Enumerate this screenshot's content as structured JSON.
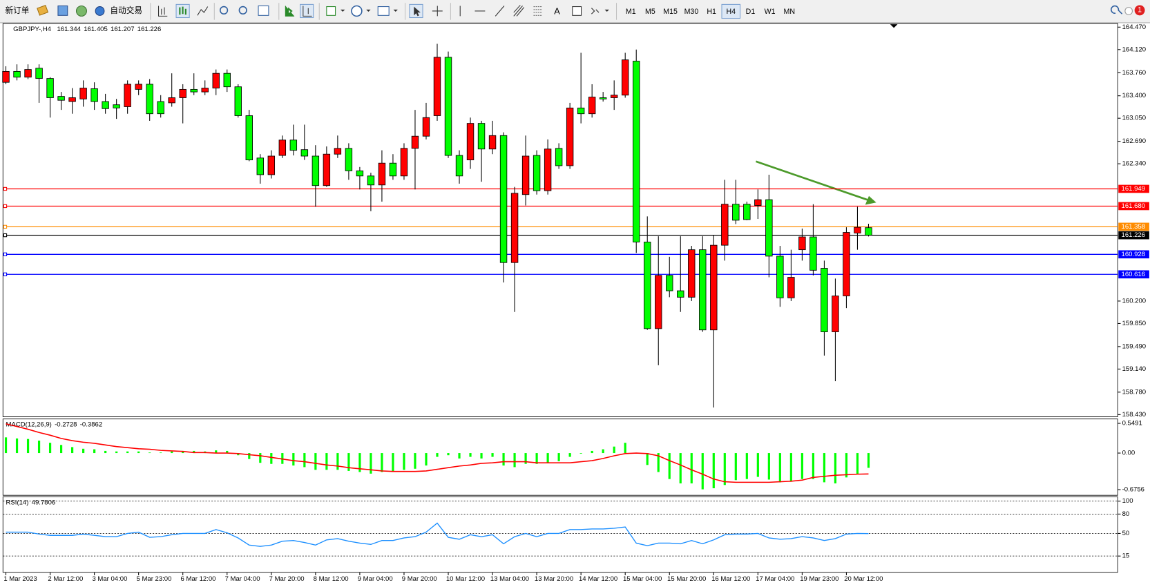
{
  "toolbar": {
    "new_order": "新订单",
    "auto_trading": "自动交易",
    "text_tool": "A",
    "timeframes": [
      "M1",
      "M5",
      "M15",
      "M30",
      "H1",
      "H4",
      "D1",
      "W1",
      "MN"
    ],
    "active_timeframe": "H4",
    "notifications": 1
  },
  "chart_data": [
    {
      "type": "candlestick",
      "title": "GBPJPY-,H4",
      "up_color": "#ff0000",
      "down_color": "#00ff00",
      "categories": [
        "1 Mar 2023",
        null,
        null,
        null,
        "2 Mar 12:00",
        null,
        null,
        null,
        "3 Mar 04:00",
        null,
        null,
        null,
        "5 Mar 23:00",
        null,
        null,
        null,
        "6 Mar 12:00",
        null,
        null,
        null,
        "7 Mar 04:00",
        null,
        null,
        null,
        "7 Mar 20:00",
        null,
        null,
        null,
        "8 Mar 12:00",
        null,
        null,
        null,
        "9 Mar 04:00",
        null,
        null,
        null,
        "9 Mar 20:00",
        null,
        null,
        null,
        "10 Mar 12:00",
        null,
        null,
        null,
        "13 Mar 04:00",
        null,
        null,
        null,
        "13 Mar 20:00",
        null,
        null,
        null,
        "14 Mar 12:00",
        null,
        null,
        null,
        "15 Mar 04:00",
        null,
        null,
        null,
        "15 Mar 20:00",
        null,
        null,
        null,
        "16 Mar 12:00",
        null,
        null,
        null,
        "17 Mar 04:00",
        null,
        null,
        null,
        "19 Mar 23:00",
        null,
        null,
        null,
        "20 Mar 12:00",
        null,
        null
      ],
      "open": [
        163.61,
        163.78,
        163.69,
        163.83,
        163.67,
        163.39,
        163.31,
        163.35,
        163.51,
        163.31,
        163.26,
        163.23,
        163.5,
        163.58,
        163.31,
        163.29,
        163.37,
        163.5,
        163.46,
        163.52,
        163.75,
        163.54,
        163.09,
        162.43,
        162.17,
        162.47,
        162.71,
        162.56,
        162.46,
        162.0,
        162.49,
        162.58,
        162.23,
        162.15,
        162.01,
        162.35,
        162.15,
        162.58,
        162.77,
        163.09,
        164.0,
        162.47,
        162.4,
        162.97,
        162.57,
        162.78,
        160.8,
        161.86,
        162.47,
        161.92,
        162.58,
        162.31,
        163.21,
        163.12,
        163.37,
        163.37,
        163.41,
        163.94,
        161.12,
        159.77,
        160.6,
        160.36,
        160.26,
        161.0,
        159.75,
        161.07,
        161.71,
        161.71,
        161.69,
        161.78,
        160.9,
        160.25,
        161.0,
        161.2,
        160.71,
        159.72,
        160.28,
        161.26,
        161.344
      ],
      "high": [
        163.86,
        163.89,
        163.89,
        163.89,
        163.69,
        163.46,
        163.52,
        163.64,
        163.61,
        163.43,
        163.35,
        163.64,
        163.64,
        163.66,
        163.41,
        163.75,
        163.58,
        163.75,
        163.64,
        163.81,
        163.81,
        163.58,
        163.18,
        162.49,
        162.55,
        162.78,
        162.95,
        162.95,
        162.63,
        162.61,
        162.78,
        162.66,
        162.29,
        162.2,
        162.55,
        162.49,
        162.66,
        163.18,
        163.29,
        164.21,
        164.09,
        162.55,
        163.06,
        163.01,
        163.01,
        162.83,
        161.98,
        162.78,
        162.55,
        162.72,
        162.66,
        163.29,
        164.07,
        163.58,
        163.46,
        163.64,
        164.07,
        164.12,
        161.52,
        161.21,
        160.89,
        161.21,
        161.06,
        161.21,
        161.23,
        162.09,
        162.09,
        161.75,
        161.94,
        162.17,
        161.06,
        161.0,
        161.33,
        161.71,
        160.83,
        160.55,
        161.35,
        161.67,
        161.405
      ],
      "low": [
        163.58,
        163.64,
        163.66,
        163.29,
        163.06,
        163.18,
        163.12,
        163.23,
        163.18,
        163.12,
        163.04,
        163.12,
        163.41,
        163.01,
        163.06,
        163.23,
        162.97,
        163.41,
        163.41,
        163.41,
        163.46,
        163.06,
        162.38,
        162.03,
        162.11,
        162.43,
        162.47,
        162.4,
        161.67,
        161.98,
        162.43,
        162.09,
        161.94,
        161.6,
        161.75,
        162.09,
        162.09,
        161.94,
        162.72,
        163.01,
        162.43,
        162.03,
        162.26,
        162.06,
        162.49,
        160.49,
        160.03,
        161.69,
        161.86,
        161.86,
        162.26,
        162.26,
        162.97,
        163.06,
        163.31,
        163.18,
        163.37,
        160.95,
        159.75,
        159.2,
        160.26,
        160.03,
        160.2,
        159.72,
        158.54,
        160.83,
        161.4,
        161.46,
        161.48,
        160.57,
        160.11,
        160.2,
        160.83,
        160.6,
        159.35,
        158.95,
        160.09,
        161.0,
        161.207
      ],
      "close": [
        163.78,
        163.69,
        163.81,
        163.67,
        163.37,
        163.33,
        163.37,
        163.52,
        163.31,
        163.2,
        163.21,
        163.58,
        163.58,
        163.12,
        163.12,
        163.37,
        163.5,
        163.46,
        163.52,
        163.75,
        163.54,
        163.09,
        162.4,
        162.17,
        162.46,
        162.71,
        162.55,
        162.46,
        162.0,
        162.49,
        162.58,
        162.23,
        162.15,
        162.01,
        162.35,
        162.15,
        162.58,
        162.77,
        163.06,
        164.0,
        162.47,
        162.15,
        162.97,
        162.57,
        162.78,
        160.8,
        161.88,
        162.46,
        161.92,
        162.57,
        162.31,
        163.21,
        163.12,
        163.38,
        163.35,
        163.41,
        163.96,
        161.12,
        159.77,
        160.6,
        160.36,
        160.26,
        161.0,
        159.75,
        161.07,
        161.71,
        161.46,
        161.47,
        161.78,
        160.9,
        160.25,
        160.57,
        161.2,
        160.68,
        159.72,
        160.28,
        161.27,
        161.35,
        161.226
      ],
      "ylim": [
        158.396,
        164.527
      ],
      "yticks": [
        {
          "value": 164.47,
          "label": "164.470"
        },
        {
          "value": 164.12,
          "label": "164.120"
        },
        {
          "value": 163.76,
          "label": "163.760"
        },
        {
          "value": 163.4,
          "label": "163.400"
        },
        {
          "value": 163.05,
          "label": "163.050"
        },
        {
          "value": 162.69,
          "label": "162.690"
        },
        {
          "value": 162.34,
          "label": "162.340"
        },
        {
          "value": 160.2,
          "label": "160.200"
        },
        {
          "value": 159.85,
          "label": "159.850"
        },
        {
          "value": 159.49,
          "label": "159.490"
        },
        {
          "value": 159.14,
          "label": "159.140"
        },
        {
          "value": 158.78,
          "label": "158.780"
        },
        {
          "value": 158.43,
          "label": "158.430"
        }
      ],
      "hlines": [
        {
          "value": 161.949,
          "label": "161.949",
          "color": "#ff0000"
        },
        {
          "value": 161.68,
          "label": "161.680",
          "color": "#ff0000"
        },
        {
          "value": 161.358,
          "label": "161.358",
          "color": "#ff8c00"
        },
        {
          "value": 161.226,
          "label": "161.226",
          "color": "#000000"
        },
        {
          "value": 160.928,
          "label": "160.928",
          "color": "#0000ff"
        },
        {
          "value": 160.616,
          "label": "160.616",
          "color": "#0000ff"
        }
      ]
    },
    {
      "type": "bar",
      "title": "MACD(12,26,9)",
      "series": [
        {
          "type": "bar",
          "color": "#00ff00",
          "values": [
            0.29,
            0.27,
            0.26,
            0.23,
            0.19,
            0.15,
            0.11,
            0.08,
            0.07,
            0.04,
            0.03,
            0.03,
            0.03,
            0.01,
            0.01,
            0.03,
            0.04,
            0.04,
            0.03,
            0.05,
            0.04,
            -0.04,
            -0.11,
            -0.18,
            -0.2,
            -0.2,
            -0.23,
            -0.26,
            -0.31,
            -0.31,
            -0.31,
            -0.33,
            -0.35,
            -0.38,
            -0.35,
            -0.35,
            -0.31,
            -0.29,
            -0.23,
            -0.07,
            -0.04,
            -0.1,
            -0.07,
            -0.1,
            -0.07,
            -0.23,
            -0.26,
            -0.2,
            -0.2,
            -0.18,
            -0.15,
            -0.07,
            -0.01,
            0.04,
            0.07,
            0.12,
            0.19,
            -0.01,
            -0.22,
            -0.35,
            -0.48,
            -0.56,
            -0.56,
            -0.67,
            -0.65,
            -0.59,
            -0.5,
            -0.48,
            -0.44,
            -0.49,
            -0.54,
            -0.53,
            -0.48,
            -0.48,
            -0.54,
            -0.56,
            -0.45,
            -0.39,
            -0.2728
          ]
        },
        {
          "type": "line",
          "color": "#ff0000",
          "values": [
            0.54,
            0.49,
            0.44,
            0.38,
            0.33,
            0.27,
            0.23,
            0.2,
            0.18,
            0.15,
            0.12,
            0.1,
            0.08,
            0.07,
            0.05,
            0.04,
            0.03,
            0.01,
            0.01,
            0.0,
            0.0,
            -0.01,
            -0.03,
            -0.05,
            -0.08,
            -0.11,
            -0.14,
            -0.16,
            -0.19,
            -0.22,
            -0.24,
            -0.27,
            -0.29,
            -0.31,
            -0.33,
            -0.34,
            -0.34,
            -0.34,
            -0.33,
            -0.3,
            -0.27,
            -0.24,
            -0.22,
            -0.19,
            -0.18,
            -0.16,
            -0.16,
            -0.16,
            -0.18,
            -0.18,
            -0.18,
            -0.18,
            -0.16,
            -0.14,
            -0.1,
            -0.05,
            -0.01,
            0.0,
            -0.01,
            -0.05,
            -0.14,
            -0.22,
            -0.31,
            -0.39,
            -0.48,
            -0.53,
            -0.54,
            -0.54,
            -0.54,
            -0.54,
            -0.53,
            -0.52,
            -0.5,
            -0.45,
            -0.43,
            -0.41,
            -0.4,
            -0.39,
            -0.3862
          ]
        }
      ],
      "ylim": [
        -0.78,
        0.63
      ],
      "yticks": [
        0.5491,
        {
          "value": 0,
          "label": "0.00"
        },
        -0.6756
      ]
    },
    {
      "type": "line",
      "title": "RSI(14)",
      "color": "#1e90ff",
      "values": [
        52,
        52,
        52,
        49,
        47,
        47,
        47,
        49,
        47,
        45,
        45,
        50,
        52,
        44,
        45,
        48,
        50,
        50,
        50,
        56,
        51,
        43,
        32,
        30,
        32,
        38,
        39,
        36,
        32,
        40,
        42,
        38,
        35,
        33,
        39,
        39,
        43,
        45,
        52,
        66,
        44,
        41,
        48,
        45,
        48,
        34,
        45,
        50,
        45,
        50,
        50,
        56,
        56,
        57,
        57,
        58,
        60,
        35,
        31,
        35,
        35,
        34,
        39,
        34,
        40,
        48,
        49,
        49,
        50,
        43,
        41,
        42,
        45,
        43,
        39,
        42,
        49,
        50,
        49.7806
      ],
      "ylim": [
        -10.2,
        106.8
      ],
      "yticks": [
        100,
        80,
        50,
        15
      ],
      "grid": true
    }
  ]
}
